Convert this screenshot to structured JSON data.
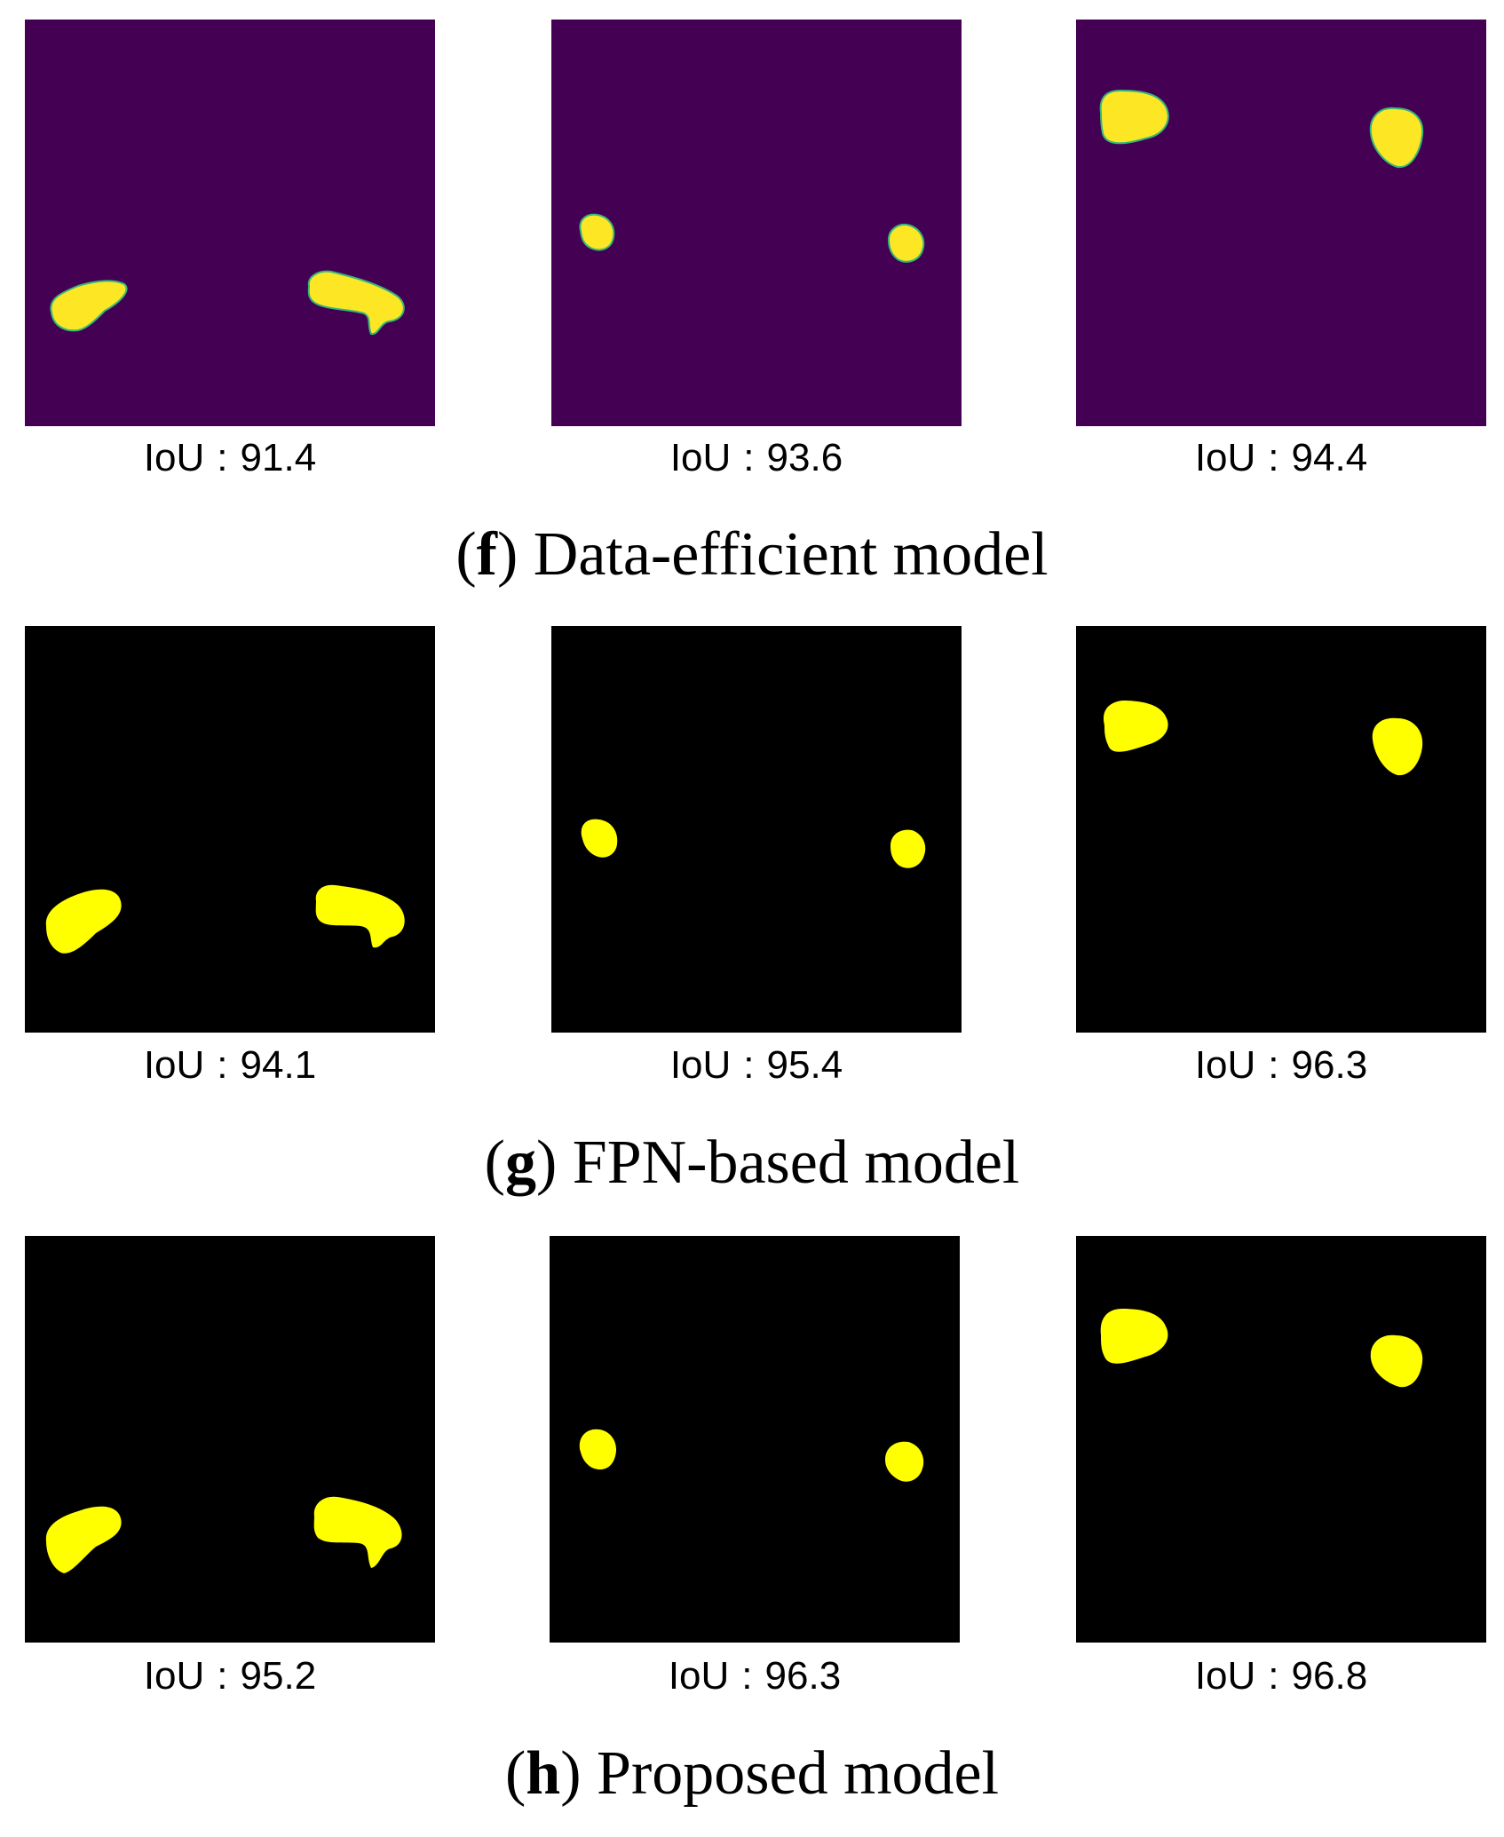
{
  "rows": [
    {
      "letter": "f",
      "title": "Data-efficient model",
      "background": "#440154",
      "blob_fill": "#fde725",
      "blob_stroke": "#35b779",
      "iou_label": "IoU",
      "iou_sep": ":",
      "panels": [
        {
          "iou": "91.4",
          "content": "two-kidney-bottom"
        },
        {
          "iou": "93.6",
          "content": "two-small-round-middle"
        },
        {
          "iou": "94.4",
          "content": "two-blobs-top"
        }
      ]
    },
    {
      "letter": "g",
      "title": "FPN-based model",
      "background": "#000000",
      "blob_fill": "#ffff00",
      "blob_stroke": "#ffff00",
      "iou_label": "IoU",
      "iou_sep": ":",
      "panels": [
        {
          "iou": "94.1",
          "content": "two-kidney-bottom"
        },
        {
          "iou": "95.4",
          "content": "two-small-round-middle"
        },
        {
          "iou": "96.3",
          "content": "two-blobs-top"
        }
      ]
    },
    {
      "letter": "h",
      "title": "Proposed model",
      "background": "#000000",
      "blob_fill": "#ffff00",
      "blob_stroke": "#ffff00",
      "iou_label": "IoU",
      "iou_sep": ":",
      "panels": [
        {
          "iou": "95.2",
          "content": "two-kidney-bottom"
        },
        {
          "iou": "96.3",
          "content": "two-small-round-middle"
        },
        {
          "iou": "96.8",
          "content": "two-blobs-top"
        }
      ]
    }
  ]
}
